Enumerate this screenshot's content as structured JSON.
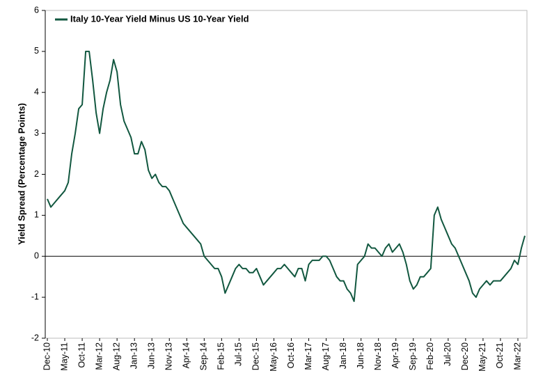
{
  "chart_data": {
    "type": "line",
    "ylabel": "Yield Spread (Percentage Points)",
    "categories": [
      "Dec-10",
      null,
      null,
      null,
      null,
      "May-11",
      null,
      null,
      null,
      null,
      "Oct-11",
      null,
      null,
      null,
      null,
      "Mar-12",
      null,
      null,
      null,
      null,
      "Aug-12",
      null,
      null,
      null,
      null,
      "Jan-13",
      null,
      null,
      null,
      null,
      "Jun-13",
      null,
      null,
      null,
      null,
      "Nov-13",
      null,
      null,
      null,
      null,
      "Apr-14",
      null,
      null,
      null,
      null,
      "Sep-14",
      null,
      null,
      null,
      null,
      "Feb-15",
      null,
      null,
      null,
      null,
      "Jul-15",
      null,
      null,
      null,
      null,
      "Dec-15",
      null,
      null,
      null,
      null,
      "May-16",
      null,
      null,
      null,
      null,
      "Oct-16",
      null,
      null,
      null,
      null,
      "Mar-17",
      null,
      null,
      null,
      null,
      "Aug-17",
      null,
      null,
      null,
      null,
      "Jan-18",
      null,
      null,
      null,
      null,
      "Jun-18",
      null,
      null,
      null,
      null,
      "Nov-18",
      null,
      null,
      null,
      null,
      "Apr-19",
      null,
      null,
      null,
      null,
      "Sep-19",
      null,
      null,
      null,
      null,
      "Feb-20",
      null,
      null,
      null,
      null,
      "Jul-20",
      null,
      null,
      null,
      null,
      "Dec-20",
      null,
      null,
      null,
      null,
      "May-21",
      null,
      null,
      null,
      null,
      "Oct-21",
      null,
      null,
      null,
      null,
      "Mar-22",
      null,
      null
    ],
    "series": [
      {
        "name": "Italy 10-Year Yield Minus US 10-Year Yield",
        "color": "#11573f",
        "values": [
          1.4,
          1.2,
          1.3,
          1.4,
          1.5,
          1.6,
          1.8,
          2.5,
          3.0,
          3.6,
          3.7,
          5.0,
          5.0,
          4.3,
          3.5,
          3.0,
          3.6,
          4.0,
          4.3,
          4.8,
          4.5,
          3.7,
          3.3,
          3.1,
          2.9,
          2.5,
          2.5,
          2.8,
          2.6,
          2.1,
          1.9,
          2.0,
          1.8,
          1.7,
          1.7,
          1.6,
          1.4,
          1.2,
          1.0,
          0.8,
          0.7,
          0.6,
          0.5,
          0.4,
          0.3,
          0.0,
          -0.1,
          -0.2,
          -0.3,
          -0.3,
          -0.5,
          -0.9,
          -0.7,
          -0.5,
          -0.3,
          -0.2,
          -0.3,
          -0.3,
          -0.4,
          -0.4,
          -0.3,
          -0.5,
          -0.7,
          -0.6,
          -0.5,
          -0.4,
          -0.3,
          -0.3,
          -0.2,
          -0.3,
          -0.4,
          -0.5,
          -0.3,
          -0.3,
          -0.6,
          -0.2,
          -0.1,
          -0.1,
          -0.1,
          0.0,
          0.0,
          -0.1,
          -0.3,
          -0.5,
          -0.6,
          -0.6,
          -0.8,
          -0.9,
          -1.1,
          -0.2,
          -0.1,
          0.0,
          0.3,
          0.2,
          0.2,
          0.1,
          0.0,
          0.2,
          0.3,
          0.1,
          0.2,
          0.3,
          0.1,
          -0.2,
          -0.6,
          -0.8,
          -0.7,
          -0.5,
          -0.5,
          -0.4,
          -0.3,
          1.0,
          1.2,
          0.9,
          0.7,
          0.5,
          0.3,
          0.2,
          0.0,
          -0.2,
          -0.4,
          -0.6,
          -0.9,
          -1.0,
          -0.8,
          -0.7,
          -0.6,
          -0.7,
          -0.6,
          -0.6,
          -0.6,
          -0.5,
          -0.4,
          -0.3,
          -0.1,
          -0.2,
          0.2,
          0.5
        ]
      }
    ],
    "ylim": [
      -2,
      6
    ],
    "yticks": [
      -2,
      -1,
      0,
      1,
      2,
      3,
      4,
      5,
      6
    ],
    "legend": "upper left"
  }
}
